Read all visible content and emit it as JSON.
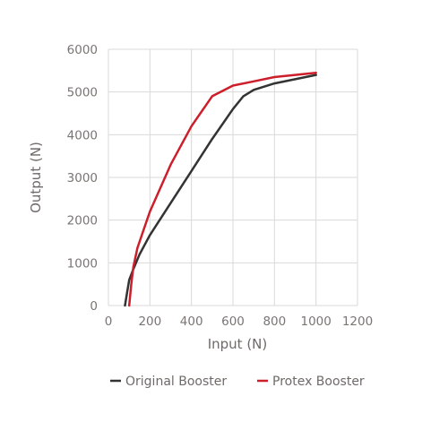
{
  "chart_data": {
    "type": "line",
    "xlabel": "Input (N)",
    "ylabel": "Output (N)",
    "xlim": [
      0,
      1200
    ],
    "ylim": [
      0,
      6000
    ],
    "x_ticks": [
      "0",
      "200",
      "400",
      "600",
      "800",
      "1000",
      "1200"
    ],
    "y_ticks": [
      "0",
      "1000",
      "2000",
      "3000",
      "4000",
      "5000",
      "6000"
    ],
    "grid": "both",
    "legend_position": "bottom",
    "series": [
      {
        "name": "Original Booster",
        "color": "#333333",
        "points": [
          [
            80,
            0
          ],
          [
            90,
            300
          ],
          [
            100,
            600
          ],
          [
            120,
            850
          ],
          [
            150,
            1200
          ],
          [
            200,
            1650
          ],
          [
            300,
            2400
          ],
          [
            400,
            3150
          ],
          [
            500,
            3900
          ],
          [
            600,
            4600
          ],
          [
            650,
            4900
          ],
          [
            700,
            5050
          ],
          [
            800,
            5200
          ],
          [
            900,
            5300
          ],
          [
            1000,
            5400
          ]
        ]
      },
      {
        "name": "Protex Booster",
        "color": "#cc1f2b",
        "points": [
          [
            100,
            0
          ],
          [
            110,
            500
          ],
          [
            120,
            900
          ],
          [
            140,
            1350
          ],
          [
            200,
            2200
          ],
          [
            300,
            3300
          ],
          [
            400,
            4200
          ],
          [
            500,
            4900
          ],
          [
            600,
            5150
          ],
          [
            700,
            5250
          ],
          [
            800,
            5350
          ],
          [
            900,
            5400
          ],
          [
            1000,
            5450
          ]
        ]
      }
    ]
  }
}
